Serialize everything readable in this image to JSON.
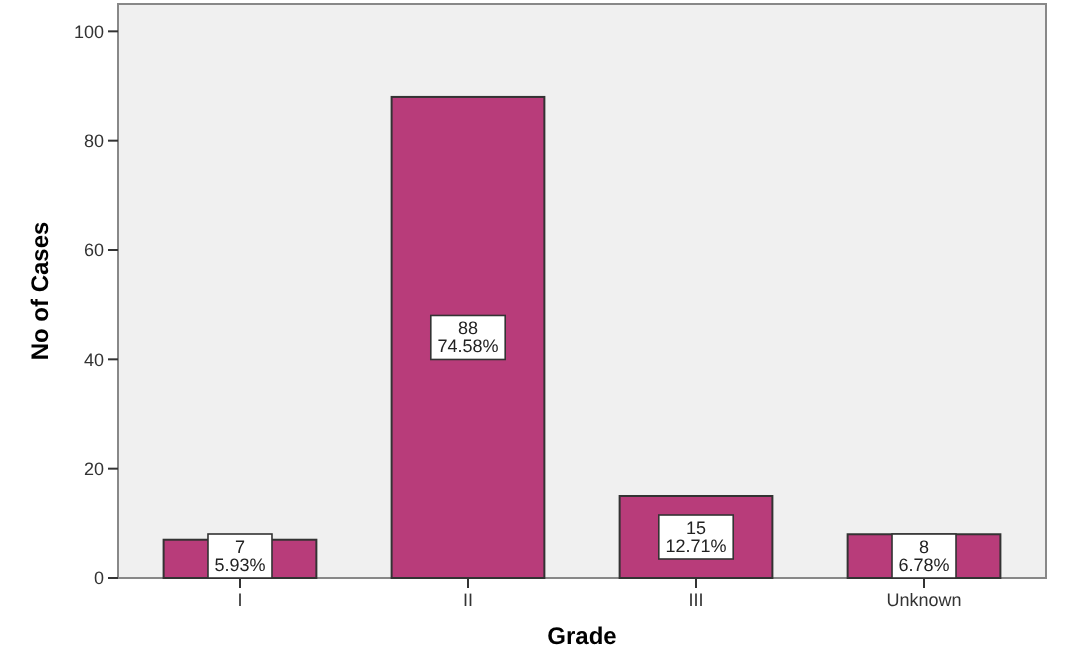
{
  "chart_data": {
    "type": "bar",
    "xlabel": "Grade",
    "ylabel": "No of Cases",
    "categories": [
      "I",
      "II",
      "III",
      "Unknown"
    ],
    "values": [
      7,
      88,
      15,
      8
    ],
    "value_labels": [
      "7\n5.93%",
      "88\n74.58%",
      "15\n12.71%",
      "8\n6.78%"
    ],
    "color": "#b83c7a",
    "ylim": [
      0,
      105
    ],
    "yticks": [
      0,
      20,
      40,
      60,
      80,
      100
    ],
    "grid": false
  }
}
